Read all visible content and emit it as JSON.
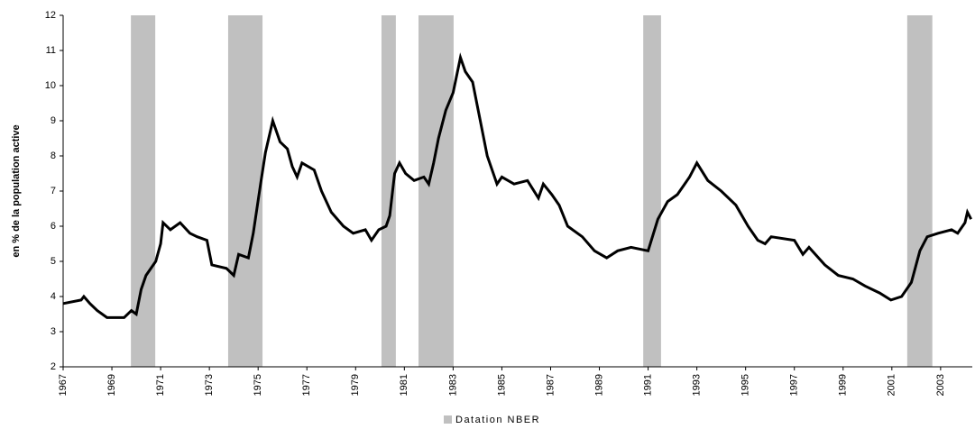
{
  "chart_data": {
    "type": "line",
    "y_label": "en % de la population active",
    "xlim": [
      1967,
      2004.3
    ],
    "ylim": [
      2,
      12
    ],
    "xticks": [
      1967,
      1969,
      1971,
      1973,
      1975,
      1977,
      1979,
      1981,
      1983,
      1985,
      1987,
      1989,
      1991,
      1993,
      1995,
      1997,
      1999,
      2001,
      2003
    ],
    "yticks": [
      2,
      3,
      4,
      5,
      6,
      7,
      8,
      9,
      10,
      11,
      12
    ],
    "grid": false,
    "legend": "bottom",
    "recessions": {
      "name": "Datation NBER",
      "color": "#c0c0c0",
      "ranges": [
        [
          1969.78,
          1970.78
        ],
        [
          1973.77,
          1975.18
        ],
        [
          1980.06,
          1980.65
        ],
        [
          1981.58,
          1983.02
        ],
        [
          1990.8,
          1991.53
        ],
        [
          2001.63,
          2002.66
        ]
      ]
    },
    "series": [
      {
        "color": "#000000",
        "x": [
          1967.0,
          1967.74,
          1967.85,
          1968.1,
          1968.4,
          1968.8,
          1969.5,
          1969.8,
          1970.0,
          1970.2,
          1970.4,
          1970.8,
          1971.0,
          1971.1,
          1971.4,
          1971.8,
          1972.2,
          1972.5,
          1972.9,
          1973.1,
          1973.7,
          1974.0,
          1974.2,
          1974.6,
          1974.8,
          1975.1,
          1975.3,
          1975.6,
          1975.9,
          1976.2,
          1976.4,
          1976.6,
          1976.8,
          1977.3,
          1977.6,
          1978.0,
          1978.5,
          1978.9,
          1979.4,
          1979.65,
          1979.95,
          1980.25,
          1980.4,
          1980.6,
          1980.8,
          1981.05,
          1981.4,
          1981.8,
          1982.0,
          1982.2,
          1982.4,
          1982.7,
          1983.0,
          1983.3,
          1983.5,
          1983.8,
          1984.0,
          1984.4,
          1984.8,
          1985.0,
          1985.5,
          1986.05,
          1986.5,
          1986.7,
          1987.05,
          1987.35,
          1987.7,
          1988.3,
          1988.8,
          1989.3,
          1989.75,
          1990.3,
          1991.0,
          1991.4,
          1991.8,
          1992.2,
          1992.7,
          1993.0,
          1993.45,
          1994.0,
          1994.6,
          1995.1,
          1995.5,
          1995.8,
          1996.05,
          1997.0,
          1997.35,
          1997.6,
          1998.25,
          1998.8,
          1999.4,
          1999.9,
          2000.5,
          2000.96,
          2001.4,
          2001.8,
          2002.15,
          2002.45,
          2002.9,
          2003.45,
          2003.7,
          2004.0,
          2004.1,
          2004.25
        ],
        "values": [
          3.8,
          3.9,
          4.0,
          3.8,
          3.6,
          3.4,
          3.4,
          3.6,
          3.5,
          4.2,
          4.6,
          5.0,
          5.5,
          6.1,
          5.9,
          6.1,
          5.8,
          5.7,
          5.6,
          4.9,
          4.8,
          4.6,
          5.2,
          5.1,
          5.8,
          7.2,
          8.1,
          9.0,
          8.4,
          8.2,
          7.7,
          7.4,
          7.8,
          7.6,
          7.0,
          6.4,
          6.0,
          5.8,
          5.9,
          5.6,
          5.9,
          6.0,
          6.3,
          7.5,
          7.8,
          7.5,
          7.3,
          7.4,
          7.2,
          7.8,
          8.5,
          9.3,
          9.8,
          10.8,
          10.4,
          10.1,
          9.4,
          8.0,
          7.2,
          7.4,
          7.2,
          7.3,
          6.8,
          7.2,
          6.9,
          6.6,
          6.0,
          5.7,
          5.3,
          5.1,
          5.3,
          5.4,
          5.3,
          6.2,
          6.7,
          6.9,
          7.4,
          7.8,
          7.3,
          7.0,
          6.6,
          6.0,
          5.6,
          5.5,
          5.7,
          5.6,
          5.2,
          5.4,
          4.9,
          4.6,
          4.5,
          4.3,
          4.1,
          3.9,
          4.0,
          4.4,
          5.3,
          5.7,
          5.8,
          5.9,
          5.8,
          6.1,
          6.4,
          6.2
        ]
      }
    ]
  }
}
